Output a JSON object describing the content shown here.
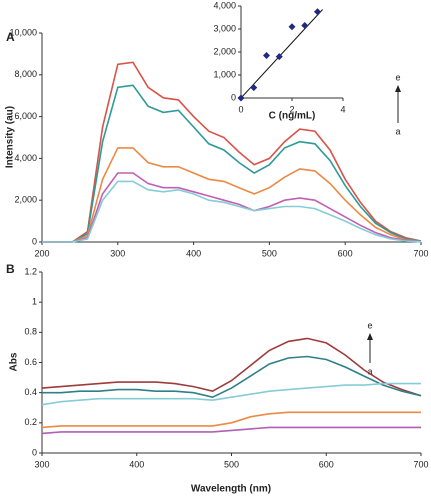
{
  "chart_data": [
    {
      "type": "line",
      "panel_label": "A",
      "ylabel": "Intensity (au)",
      "x": [
        200,
        220,
        240,
        260,
        280,
        300,
        320,
        340,
        360,
        380,
        400,
        420,
        440,
        460,
        480,
        500,
        520,
        540,
        560,
        580,
        600,
        620,
        640,
        660,
        680,
        700
      ],
      "series": [
        {
          "color": "#d9534a",
          "values": [
            0,
            0,
            0,
            500,
            5500,
            8500,
            8600,
            7400,
            6900,
            6800,
            6000,
            5300,
            5000,
            4300,
            3700,
            4000,
            4800,
            5400,
            5300,
            4400,
            3000,
            1900,
            1000,
            500,
            200,
            50
          ]
        },
        {
          "color": "#2e9a96",
          "values": [
            0,
            0,
            0,
            400,
            4800,
            7400,
            7500,
            6500,
            6200,
            6300,
            5500,
            4700,
            4400,
            3800,
            3300,
            3700,
            4500,
            4800,
            4700,
            3900,
            2700,
            1700,
            900,
            450,
            150,
            50
          ]
        },
        {
          "color": "#ec8a44",
          "values": [
            0,
            0,
            0,
            300,
            3000,
            4500,
            4500,
            3800,
            3600,
            3600,
            3300,
            3000,
            2900,
            2600,
            2300,
            2600,
            3100,
            3500,
            3400,
            2800,
            2000,
            1300,
            700,
            350,
            100,
            30
          ]
        },
        {
          "color": "#c25fb4",
          "values": [
            0,
            0,
            0,
            200,
            2300,
            3300,
            3300,
            2800,
            2600,
            2600,
            2400,
            2200,
            2000,
            1800,
            1500,
            1700,
            2000,
            2100,
            2000,
            1600,
            1200,
            800,
            450,
            200,
            80,
            20
          ]
        },
        {
          "color": "#86ccd6",
          "values": [
            0,
            0,
            0,
            150,
            2000,
            2900,
            2900,
            2500,
            2400,
            2500,
            2300,
            2000,
            1900,
            1700,
            1500,
            1600,
            1700,
            1700,
            1600,
            1300,
            1000,
            650,
            350,
            150,
            50,
            10
          ]
        }
      ],
      "xlim": [
        200,
        700
      ],
      "xticks": [
        200,
        300,
        400,
        500,
        600,
        700
      ],
      "ylim": [
        0,
        10000
      ],
      "yticks": [
        0,
        {
          "value": 2000,
          "label": "2,000"
        },
        {
          "value": 4000,
          "label": "4,000"
        },
        {
          "value": 6000,
          "label": "6,000"
        },
        {
          "value": 8000,
          "label": "8,000"
        },
        {
          "value": 10000,
          "label": "10,000"
        }
      ],
      "annotations": [
        "e",
        "a"
      ]
    },
    {
      "type": "scatter",
      "xlabel": "C (ng/mL)",
      "x": [
        0,
        0.5,
        1,
        1.5,
        2,
        2.5,
        3
      ],
      "values": [
        0,
        450,
        1850,
        1800,
        3100,
        3150,
        3750
      ],
      "color": "#1f2a80",
      "fit": {
        "x": [
          0,
          3.2
        ],
        "values": [
          0,
          3850
        ]
      },
      "xlim": [
        0,
        4
      ],
      "xticks": [
        0,
        2,
        4
      ],
      "ylim": [
        0,
        4000
      ],
      "yticks": [
        0,
        {
          "value": 1000,
          "label": "1,000"
        },
        {
          "value": 2000,
          "label": "2,000"
        },
        {
          "value": 3000,
          "label": "3,000"
        },
        {
          "value": 4000,
          "label": "4,000"
        }
      ]
    },
    {
      "type": "line",
      "panel_label": "B",
      "ylabel": "Abs",
      "xlabel": "Wavelength (nm)",
      "x": [
        300,
        320,
        340,
        360,
        380,
        400,
        420,
        440,
        460,
        480,
        500,
        520,
        540,
        560,
        580,
        600,
        620,
        640,
        660,
        680,
        700
      ],
      "series": [
        {
          "color": "#9e3b3b",
          "values": [
            0.43,
            0.44,
            0.45,
            0.46,
            0.47,
            0.47,
            0.47,
            0.46,
            0.44,
            0.41,
            0.48,
            0.58,
            0.68,
            0.74,
            0.76,
            0.73,
            0.65,
            0.55,
            0.47,
            0.42,
            0.38
          ]
        },
        {
          "color": "#2f7f88",
          "values": [
            0.4,
            0.4,
            0.41,
            0.41,
            0.42,
            0.42,
            0.41,
            0.41,
            0.4,
            0.37,
            0.43,
            0.51,
            0.59,
            0.63,
            0.64,
            0.62,
            0.57,
            0.51,
            0.45,
            0.41,
            0.38
          ]
        },
        {
          "color": "#86ccd6",
          "values": [
            0.32,
            0.34,
            0.35,
            0.36,
            0.36,
            0.36,
            0.36,
            0.36,
            0.36,
            0.35,
            0.37,
            0.39,
            0.41,
            0.42,
            0.43,
            0.44,
            0.45,
            0.45,
            0.46,
            0.46,
            0.46
          ]
        },
        {
          "color": "#ec8a44",
          "values": [
            0.17,
            0.18,
            0.18,
            0.18,
            0.18,
            0.18,
            0.18,
            0.18,
            0.18,
            0.18,
            0.2,
            0.24,
            0.26,
            0.27,
            0.27,
            0.27,
            0.27,
            0.27,
            0.27,
            0.27,
            0.27
          ]
        },
        {
          "color": "#b060b0",
          "values": [
            0.13,
            0.14,
            0.14,
            0.14,
            0.14,
            0.14,
            0.14,
            0.14,
            0.14,
            0.14,
            0.15,
            0.16,
            0.17,
            0.17,
            0.17,
            0.17,
            0.17,
            0.17,
            0.17,
            0.17,
            0.17
          ]
        }
      ],
      "xlim": [
        300,
        700
      ],
      "xticks": [
        300,
        400,
        500,
        600,
        700
      ],
      "ylim": [
        0,
        1.2
      ],
      "yticks": [
        0,
        0.2,
        0.4,
        0.6,
        0.8,
        1,
        1.2
      ],
      "annotations": [
        "e",
        "a"
      ]
    }
  ]
}
